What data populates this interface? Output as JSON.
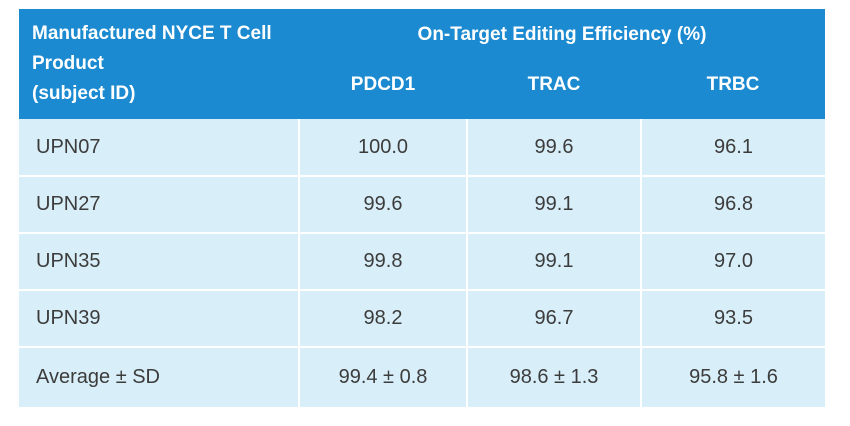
{
  "header": {
    "subject_label": "Manufactured NYCE T Cell Product (subject ID)",
    "subject_lines": [
      "Manufactured NYCE T Cell",
      "Product",
      "(subject ID)"
    ],
    "group_label": "On-Target Editing Efficiency (%)",
    "columns": [
      "PDCD1",
      "TRAC",
      "TRBC"
    ]
  },
  "rows": [
    {
      "subject": "UPN07",
      "values": [
        "100.0",
        "99.6",
        "96.1"
      ]
    },
    {
      "subject": "UPN27",
      "values": [
        "99.6",
        "99.1",
        "96.8"
      ]
    },
    {
      "subject": "UPN35",
      "values": [
        "99.8",
        "99.1",
        "97.0"
      ]
    },
    {
      "subject": "UPN39",
      "values": [
        "98.2",
        "96.7",
        "93.5"
      ]
    },
    {
      "subject": "Average ± SD",
      "values": [
        "99.4 ± 0.8",
        "98.6 ± 1.3",
        "95.8 ± 1.6"
      ]
    }
  ],
  "colors": {
    "header_bg": "#1b8ad0",
    "header_text": "#ffffff",
    "cell_bg": "#d8eef8",
    "cell_text": "#3c3c3c"
  }
}
